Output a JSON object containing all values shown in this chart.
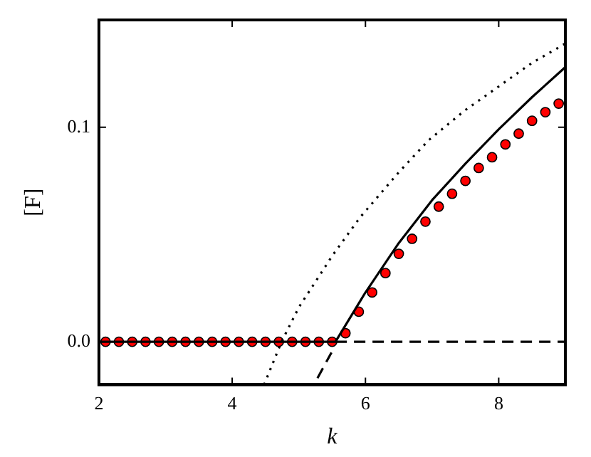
{
  "chart_data": {
    "type": "line",
    "xlabel": "k",
    "ylabel": "[F]",
    "xlim": [
      2,
      9
    ],
    "xticks": [
      2,
      4,
      6,
      8
    ],
    "ylim": [
      -0.02,
      0.15
    ],
    "yticks": [
      {
        "value": 0,
        "label": "0.0"
      },
      {
        "value": 0.1,
        "label": "0.1"
      }
    ],
    "grid": false,
    "legend": false,
    "series": [
      {
        "color": "#000000",
        "line_style": "solid",
        "marker": "none",
        "x": [
          2,
          5.55,
          6.0,
          6.5,
          7.0,
          7.5,
          8.0,
          8.5,
          9.0
        ],
        "values": [
          0,
          0,
          0.023,
          0.046,
          0.066,
          0.083,
          0.099,
          0.114,
          0.128
        ]
      },
      {
        "color": "#000000",
        "line_style": "dashed",
        "marker": "none",
        "x": [
          5.28,
          5.49
        ],
        "values": [
          -0.017,
          -0.005
        ]
      },
      {
        "color": "#000000",
        "line_style": "dashed",
        "marker": "none",
        "x": [
          5.55,
          9.0
        ],
        "values": [
          0,
          0
        ]
      },
      {
        "color": "#000000",
        "line_style": "dotted",
        "marker": "none",
        "x": [
          4.48,
          4.74,
          5.0,
          5.5,
          5.92,
          6.5,
          6.95,
          7.5,
          8.0,
          8.5,
          9.0
        ],
        "values": [
          -0.02,
          0,
          0.016,
          0.04,
          0.058,
          0.079,
          0.094,
          0.108,
          0.119,
          0.13,
          0.139
        ]
      },
      {
        "type": "scatter",
        "color": "#ff0000",
        "marker": "circle",
        "x": [
          2.1,
          2.3,
          2.5,
          2.7,
          2.9,
          3.1,
          3.3,
          3.5,
          3.7,
          3.9,
          4.1,
          4.3,
          4.5,
          4.7,
          4.9,
          5.1,
          5.3,
          5.5,
          5.7,
          5.9,
          6.1,
          6.3,
          6.5,
          6.7,
          6.9,
          7.1,
          7.3,
          7.5,
          7.7,
          7.9,
          8.1,
          8.3,
          8.5,
          8.7,
          8.9
        ],
        "values": [
          0,
          0,
          0,
          0,
          0,
          0,
          0,
          0,
          0,
          0,
          0,
          0,
          0,
          0,
          0,
          0,
          0,
          0,
          0.004,
          0.014,
          0.023,
          0.032,
          0.041,
          0.048,
          0.056,
          0.063,
          0.069,
          0.075,
          0.081,
          0.086,
          0.092,
          0.097,
          0.103,
          0.107,
          0.111
        ]
      }
    ]
  }
}
